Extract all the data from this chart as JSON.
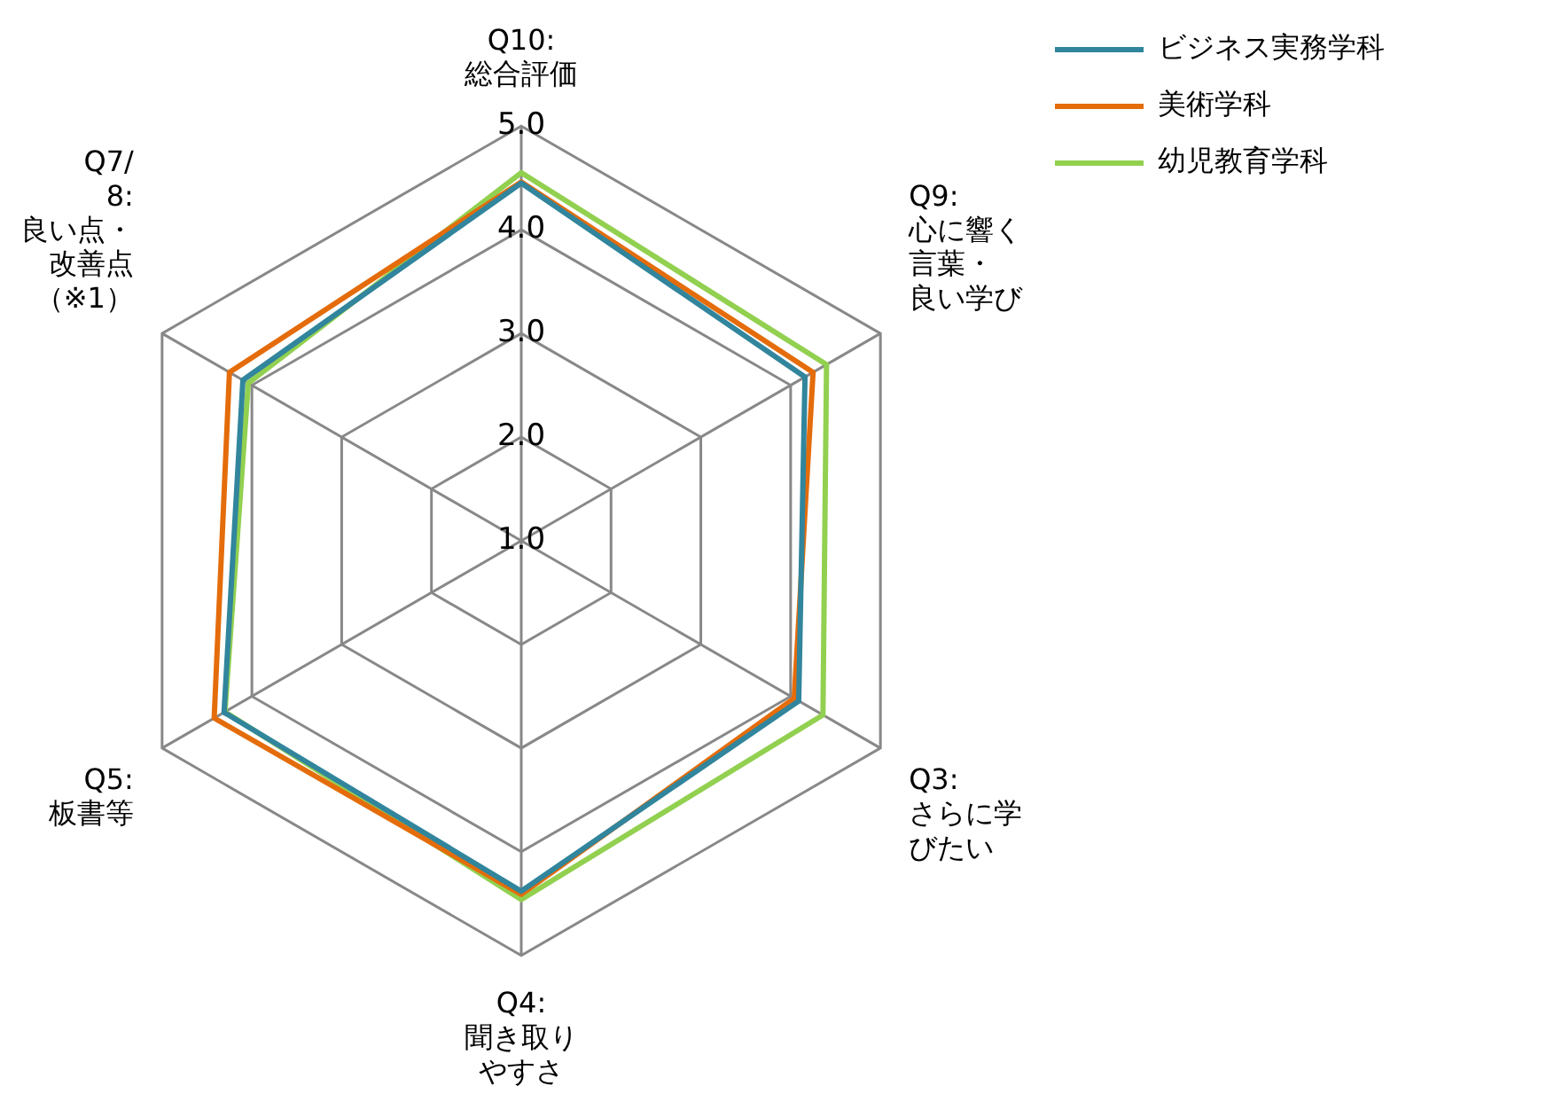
{
  "chart_data": {
    "type": "radar",
    "categories": [
      "Q10:総合評価",
      "Q9:心に響く言葉・良い学び",
      "Q3:さらに学びたい",
      "Q4:聞き取りやすさ",
      "Q5:板書等",
      "Q7/8:良い点・改善点（※1）"
    ],
    "series": [
      {
        "name": "ビジネス実務学科",
        "color": "#31859c",
        "values": [
          4.45,
          4.16,
          4.09,
          4.38,
          4.31,
          4.1
        ]
      },
      {
        "name": "美術学科",
        "color": "#e46c0a",
        "values": [
          4.46,
          4.25,
          4.04,
          4.41,
          4.42,
          4.25
        ]
      },
      {
        "name": "幼児教育学科",
        "color": "#92d050",
        "values": [
          4.55,
          4.4,
          4.36,
          4.46,
          4.3,
          4.04
        ]
      }
    ],
    "ylim": [
      1,
      5
    ],
    "yticks": [
      {
        "value": 1,
        "label": "1.0"
      },
      {
        "value": 2,
        "label": "2.0"
      },
      {
        "value": 3,
        "label": "3.0"
      },
      {
        "value": 4,
        "label": "4.0"
      },
      {
        "value": 5,
        "label": "5.0"
      }
    ],
    "grid": true,
    "legend": "top right",
    "marker": "none",
    "line_style": "solid"
  }
}
